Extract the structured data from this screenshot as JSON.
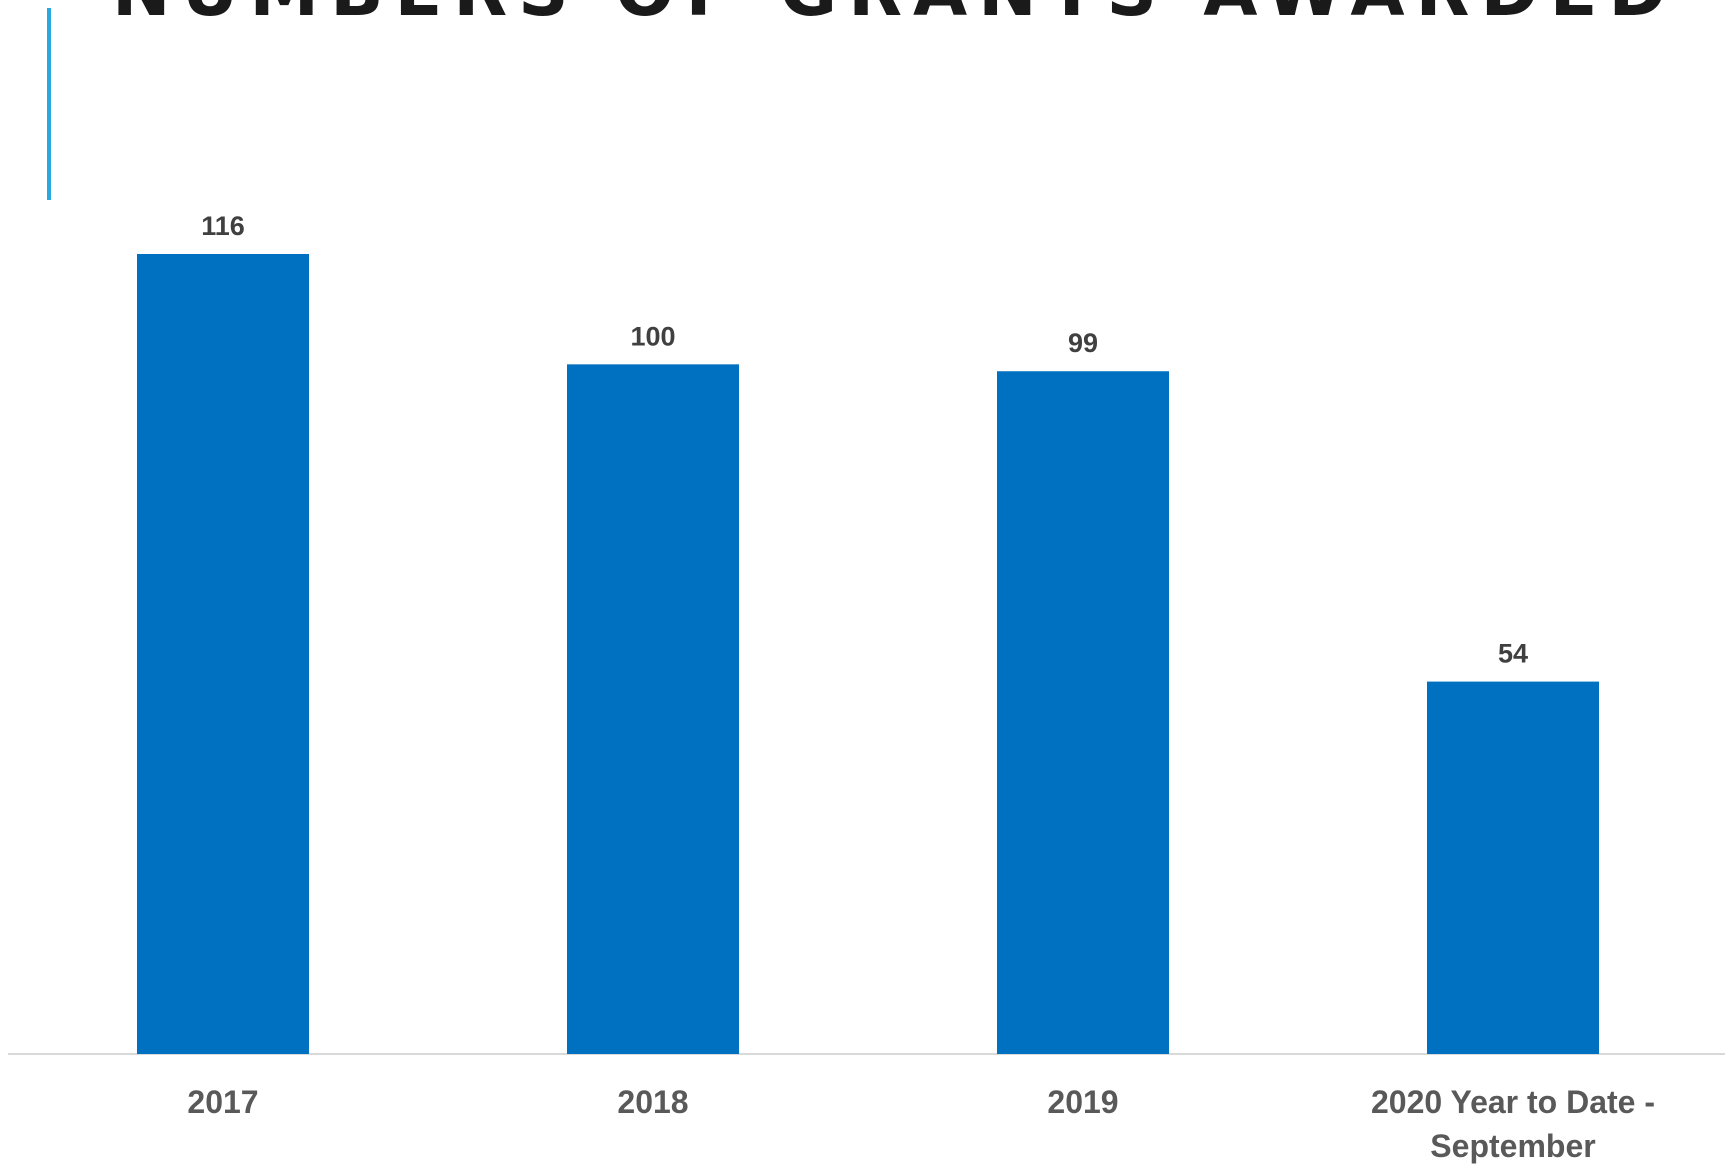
{
  "slide": {
    "title": "NUMBERS OF GRANTS AWARDED"
  },
  "colors": {
    "accent": "#29a8e0",
    "bar": "#0070c0",
    "value_label": "#404040",
    "category_label": "#595959",
    "axis": "#d9d9d9"
  },
  "chart_data": {
    "type": "bar",
    "title": "NUMBERS OF GRANTS AWARDED",
    "categories": [
      "2017",
      "2018",
      "2019",
      "2020 Year to Date - September"
    ],
    "category_label_lines": [
      [
        "2017"
      ],
      [
        "2018"
      ],
      [
        "2019"
      ],
      [
        "2020 Year to Date -",
        "September"
      ]
    ],
    "values": [
      116,
      100,
      99,
      54
    ],
    "data_labels": [
      "116",
      "100",
      "99",
      "54"
    ],
    "xlabel": "",
    "ylabel": "",
    "ylim": [
      0,
      116
    ],
    "grid": false,
    "legend": "none",
    "y_axis_visible": false
  }
}
